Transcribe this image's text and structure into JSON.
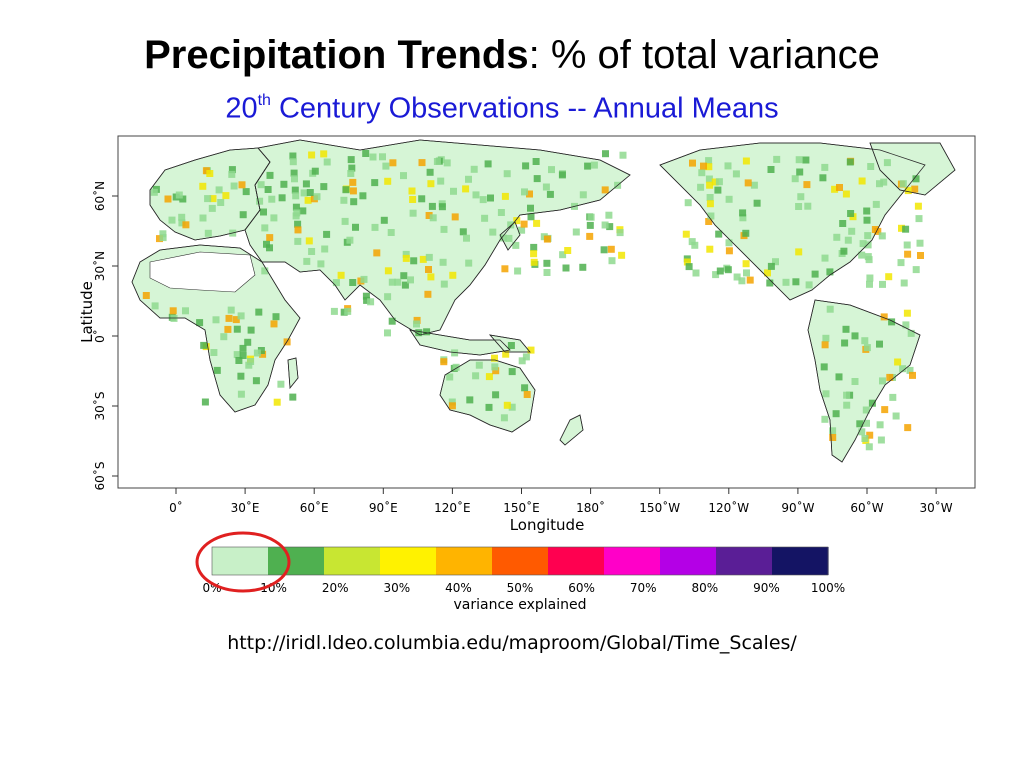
{
  "title": {
    "bold": "Precipitation Trends",
    "rest": ": % of total variance"
  },
  "subtitle": {
    "base": "20",
    "sup": "th",
    "rest": " Century Observations -- Annual Means"
  },
  "map": {
    "xlabel": "Longitude",
    "ylabel": "Latitude",
    "x_ticks": [
      "0˚",
      "30˚E",
      "60˚E",
      "90˚E",
      "120˚E",
      "150˚E",
      "180˚",
      "150˚W",
      "120˚W",
      "90˚W",
      "60˚W",
      "30˚W"
    ],
    "y_ticks": [
      "60˚N",
      "30˚N",
      "0˚",
      "30˚S",
      "60˚S"
    ],
    "colors": {
      "land_base": "#d6f5d6",
      "mid_green": "#8fd98f",
      "dark_green": "#4fb04f",
      "yellow": "#f2e600",
      "orange": "#f5a300"
    }
  },
  "colorbar": {
    "label": "variance explained",
    "ticks": [
      "0%",
      "10%",
      "20%",
      "30%",
      "40%",
      "50%",
      "60%",
      "70%",
      "80%",
      "90%",
      "100%"
    ],
    "colors": [
      "#c8f0c8",
      "#4fb050",
      "#c8e632",
      "#fff200",
      "#ffb400",
      "#ff5a00",
      "#ff0050",
      "#ff00c8",
      "#b400e6",
      "#5a1e96",
      "#141464"
    ],
    "highlight_color": "#e02020"
  },
  "source_url": "http://iridl.ldeo.columbia.edu/maproom/Global/Time_Scales/"
}
